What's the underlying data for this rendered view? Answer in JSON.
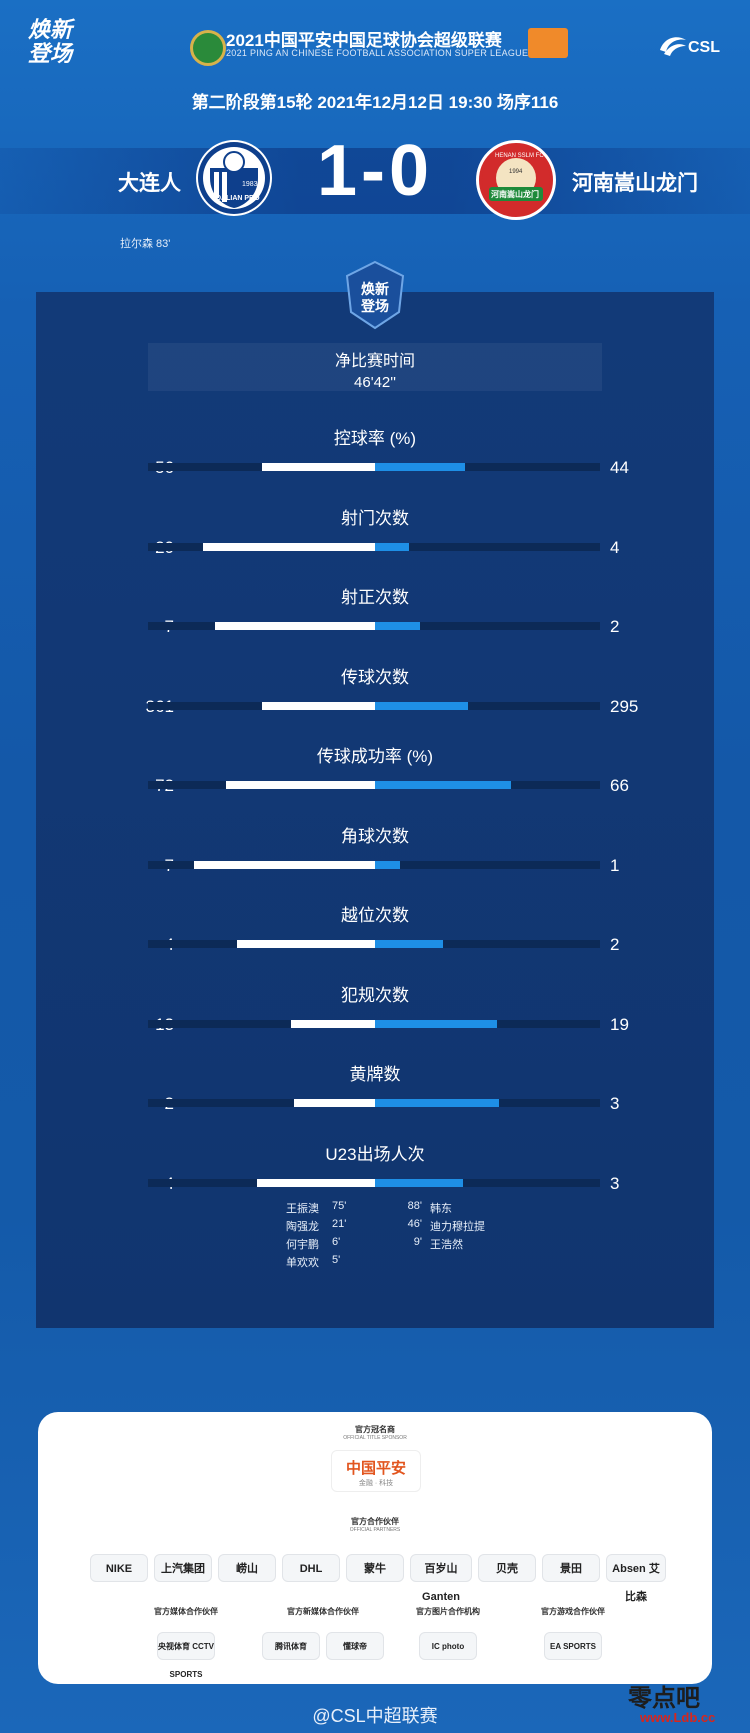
{
  "header": {
    "brand_line1": "焕新",
    "brand_line2": "登场",
    "league_title": "2021中国平安中国足球协会超级联赛",
    "league_subtitle": "2021 PING AN CHINESE FOOTBALL ASSOCIATION SUPER LEAGUE",
    "csl_text": "CSL",
    "match_info": "第二阶段第15轮  2021年12月12日 19:30 场序116"
  },
  "match": {
    "home_team": "大连人",
    "away_team": "河南嵩山龙门",
    "home_score": "1",
    "away_score": "0",
    "score_display": "1-0",
    "scorer": "拉尔森  83'",
    "home_crest_text": "DALIAN PRO",
    "home_crest_year": "1983",
    "away_crest_text": "河南嵩山龙门",
    "away_crest_top": "HENAN SSLM FC",
    "away_crest_year": "1994"
  },
  "panel": {
    "badge_line1": "焕新",
    "badge_line2": "登场",
    "net_time_label": "净比赛时间",
    "net_time_value": "46'42''"
  },
  "stats": [
    {
      "label": "控球率 (%)",
      "home": "56",
      "away": "44",
      "home_frac": 0.5,
      "away_frac": 0.4
    },
    {
      "label": "射门次数",
      "home": "20",
      "away": "4",
      "home_frac": 0.76,
      "away_frac": 0.15
    },
    {
      "label": "射正次数",
      "home": "7",
      "away": "2",
      "home_frac": 0.71,
      "away_frac": 0.2
    },
    {
      "label": "传球次数",
      "home": "361",
      "away": "295",
      "home_frac": 0.5,
      "away_frac": 0.41
    },
    {
      "label": "传球成功率 (%)",
      "home": "72",
      "away": "66",
      "home_frac": 0.66,
      "away_frac": 0.6
    },
    {
      "label": "角球次数",
      "home": "7",
      "away": "1",
      "home_frac": 0.8,
      "away_frac": 0.11
    },
    {
      "label": "越位次数",
      "home": "4",
      "away": "2",
      "home_frac": 0.61,
      "away_frac": 0.3
    },
    {
      "label": "犯规次数",
      "home": "13",
      "away": "19",
      "home_frac": 0.37,
      "away_frac": 0.54
    },
    {
      "label": "黄牌数",
      "home": "2",
      "away": "3",
      "home_frac": 0.36,
      "away_frac": 0.55
    },
    {
      "label": "U23出场人次",
      "home": "4",
      "away": "3",
      "home_frac": 0.52,
      "away_frac": 0.39
    }
  ],
  "u23_home": [
    {
      "name": "王振澳",
      "min": "75'"
    },
    {
      "name": "陶强龙",
      "min": "21'"
    },
    {
      "name": "何宇鹏",
      "min": "6'"
    },
    {
      "name": "单欢欢",
      "min": "5'"
    }
  ],
  "u23_away": [
    {
      "min": "88'",
      "name": "韩东"
    },
    {
      "min": "46'",
      "name": "迪力穆拉提"
    },
    {
      "min": "9'",
      "name": "王浩然"
    }
  ],
  "sponsors": {
    "title_cn": "官方冠名商",
    "title_en": "OFFICIAL TITLE SPONSOR",
    "title_logo": "中国平安",
    "title_logo_sub": "金融 · 科技",
    "partners_cn": "官方合作伙伴",
    "partners_en": "OFFICIAL PARTNERS",
    "partners": [
      "NIKE",
      "上汽集团",
      "崂山",
      "DHL",
      "蒙牛",
      "百岁山 Ganten",
      "贝壳",
      "景田",
      "Absen 艾比森"
    ],
    "categories": [
      {
        "cn": "官方媒体合作伙伴",
        "logos": [
          "央视体育 CCTV SPORTS"
        ]
      },
      {
        "cn": "官方新媒体合作伙伴",
        "logos": [
          "腾讯体育",
          "懂球帝"
        ]
      },
      {
        "cn": "官方图片合作机构",
        "logos": [
          "IC photo"
        ]
      },
      {
        "cn": "官方游戏合作伙伴",
        "logos": [
          "EA SPORTS"
        ]
      }
    ]
  },
  "footer": {
    "weibo": "@CSL中超联赛",
    "watermark": "零点吧",
    "watermark_url": "www.Ldb.cc"
  },
  "colors": {
    "home_bar": "#ffffff",
    "away_bar": "#1e8fe6",
    "track": "#0c2a57",
    "background": "#1660b4",
    "panel": "#123a78"
  }
}
